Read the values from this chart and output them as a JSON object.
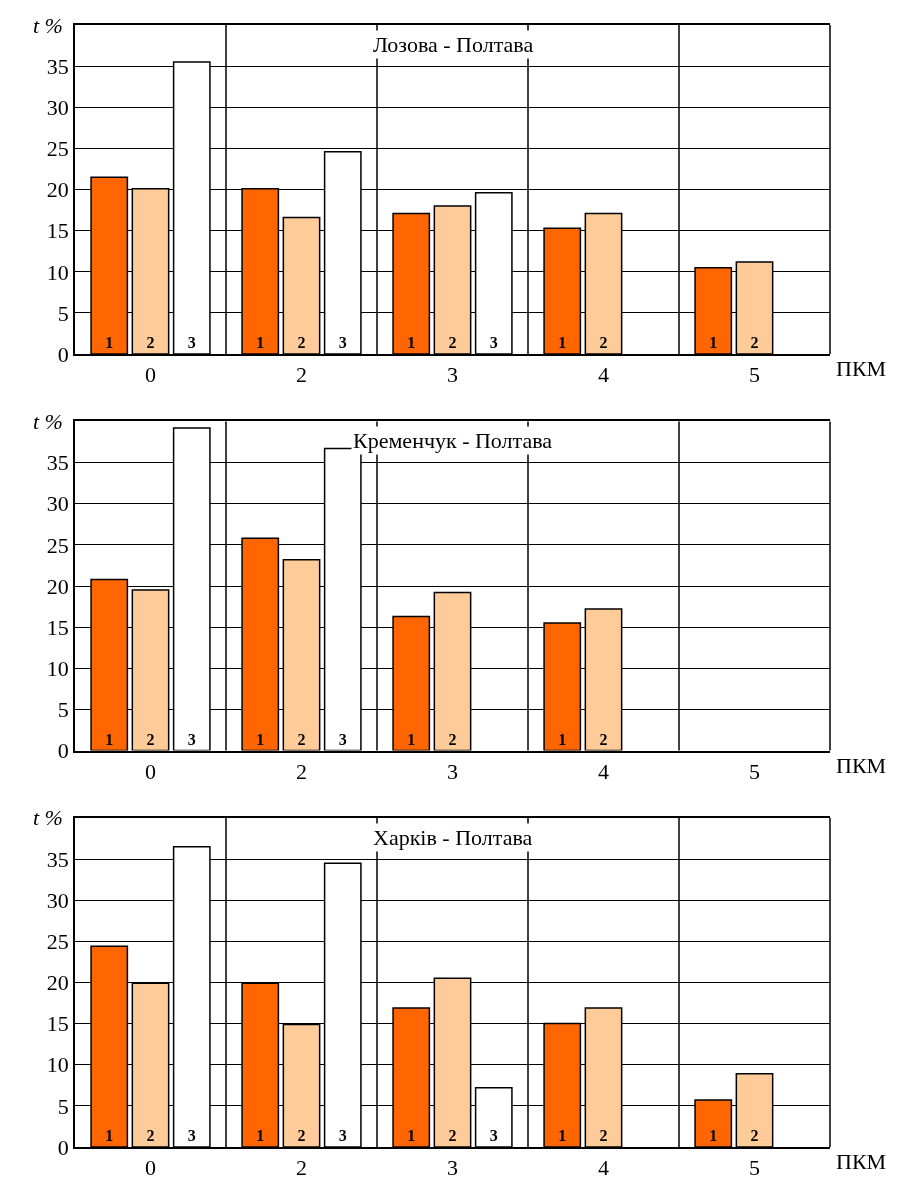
{
  "chart_data": [
    {
      "type": "bar",
      "title": "Лозова - Полтава",
      "xlabel": "ПКМ",
      "ylabel": "t %",
      "categories": [
        "0",
        "2",
        "3",
        "4",
        "5"
      ],
      "ylim": [
        0,
        40
      ],
      "yticks": [
        0,
        5,
        10,
        15,
        20,
        25,
        30,
        35
      ],
      "grid": true,
      "legend": false,
      "series": [
        {
          "name": "1",
          "color": "#ff6600",
          "values": [
            21.5,
            20.1,
            17.1,
            15.3,
            10.5
          ]
        },
        {
          "name": "2",
          "color": "#ffcc99",
          "values": [
            20.1,
            16.6,
            18.0,
            17.1,
            11.2
          ]
        },
        {
          "name": "3",
          "color": "#ffffff",
          "values": [
            35.5,
            24.6,
            19.6,
            null,
            null
          ]
        }
      ]
    },
    {
      "type": "bar",
      "title": "Кременчук - Полтава",
      "xlabel": "ПКМ",
      "ylabel": "t %",
      "categories": [
        "0",
        "2",
        "3",
        "4",
        "5"
      ],
      "ylim": [
        0,
        40
      ],
      "yticks": [
        0,
        5,
        10,
        15,
        20,
        25,
        30,
        35
      ],
      "grid": true,
      "legend": false,
      "series": [
        {
          "name": "1",
          "color": "#ff6600",
          "values": [
            20.8,
            25.8,
            16.3,
            15.5,
            null
          ]
        },
        {
          "name": "2",
          "color": "#ffcc99",
          "values": [
            19.5,
            23.2,
            19.2,
            17.2,
            null
          ]
        },
        {
          "name": "3",
          "color": "#ffffff",
          "values": [
            39.2,
            36.7,
            null,
            null,
            null
          ]
        }
      ]
    },
    {
      "type": "bar",
      "title": "Харків - Полтава",
      "xlabel": "ПКМ",
      "ylabel": "t %",
      "categories": [
        "0",
        "2",
        "3",
        "4",
        "5"
      ],
      "ylim": [
        0,
        40
      ],
      "yticks": [
        0,
        5,
        10,
        15,
        20,
        25,
        30,
        35
      ],
      "grid": true,
      "legend": false,
      "series": [
        {
          "name": "1",
          "color": "#ff6600",
          "values": [
            24.4,
            19.9,
            16.9,
            15.0,
            5.7
          ]
        },
        {
          "name": "2",
          "color": "#ffcc99",
          "values": [
            19.9,
            14.9,
            20.5,
            16.9,
            8.9
          ]
        },
        {
          "name": "3",
          "color": "#ffffff",
          "values": [
            36.5,
            34.5,
            7.2,
            null,
            null
          ]
        }
      ]
    }
  ]
}
